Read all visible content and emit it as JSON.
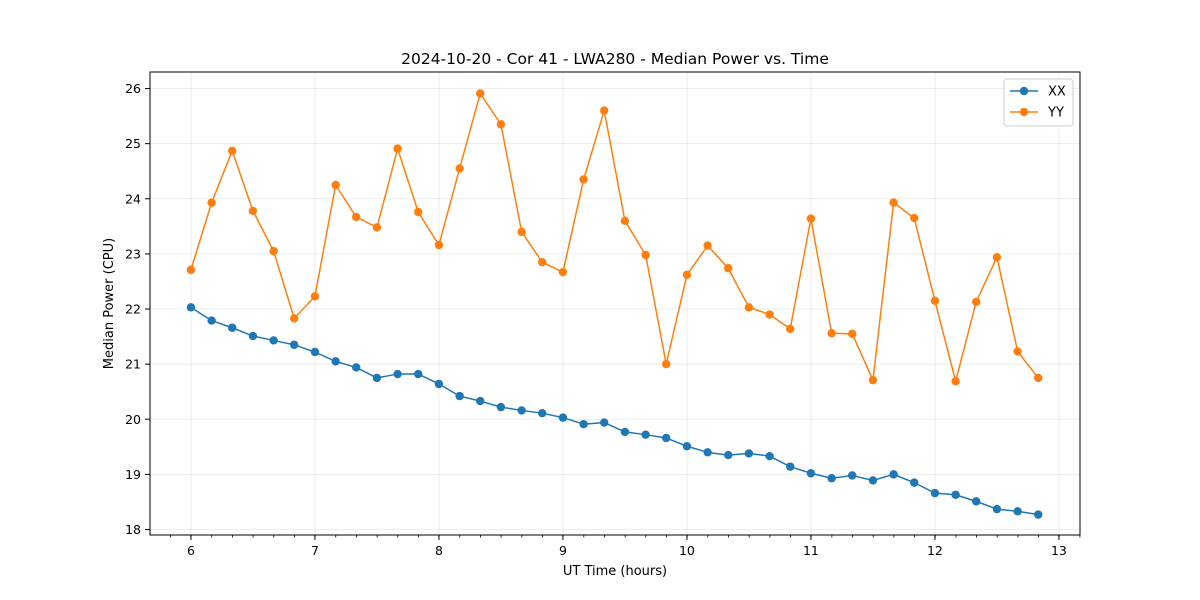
{
  "chart_data": {
    "type": "line",
    "title": "2024-10-20 - Cor 41 - LWA280 - Median Power vs. Time",
    "xlabel": "UT Time (hours)",
    "ylabel": "Median Power (CPU)",
    "xlim": [
      5.67,
      13.17
    ],
    "ylim": [
      17.9,
      26.3
    ],
    "xticks": [
      6,
      7,
      8,
      9,
      10,
      11,
      12,
      13
    ],
    "xticks_minor_step": 0.1667,
    "yticks": [
      18,
      19,
      20,
      21,
      22,
      23,
      24,
      25,
      26
    ],
    "grid": true,
    "legend_position": "top-right",
    "x": [
      6.0,
      6.167,
      6.333,
      6.5,
      6.667,
      6.833,
      7.0,
      7.167,
      7.333,
      7.5,
      7.667,
      7.833,
      8.0,
      8.167,
      8.333,
      8.5,
      8.667,
      8.833,
      9.0,
      9.167,
      9.333,
      9.5,
      9.667,
      9.833,
      10.0,
      10.167,
      10.333,
      10.5,
      10.667,
      10.833,
      11.0,
      11.167,
      11.333,
      11.5,
      11.667,
      11.833,
      12.0,
      12.167,
      12.333,
      12.5,
      12.667,
      12.833
    ],
    "series": [
      {
        "name": "XX",
        "color": "#1f77b4",
        "values": [
          22.03,
          21.79,
          21.66,
          21.51,
          21.43,
          21.35,
          21.22,
          21.05,
          20.94,
          20.75,
          20.82,
          20.82,
          20.64,
          20.42,
          20.33,
          20.22,
          20.16,
          20.11,
          20.03,
          19.91,
          19.94,
          19.77,
          19.72,
          19.66,
          19.51,
          19.4,
          19.35,
          19.38,
          19.33,
          19.14,
          19.02,
          18.93,
          18.98,
          18.89,
          19.0,
          18.85,
          18.66,
          18.63,
          18.51,
          18.37,
          18.33,
          18.27
        ]
      },
      {
        "name": "YY",
        "color": "#ff7f0e",
        "values": [
          22.71,
          23.93,
          24.87,
          23.78,
          23.05,
          21.83,
          22.23,
          24.25,
          23.67,
          23.48,
          24.91,
          23.76,
          23.16,
          24.55,
          25.91,
          25.35,
          23.4,
          22.85,
          22.67,
          24.35,
          25.6,
          23.6,
          22.98,
          21.0,
          22.62,
          23.15,
          22.74,
          22.03,
          21.9,
          21.64,
          23.64,
          21.56,
          21.55,
          20.71,
          23.93,
          23.65,
          22.15,
          20.69,
          22.13,
          22.94,
          21.23,
          20.75
        ]
      }
    ]
  }
}
